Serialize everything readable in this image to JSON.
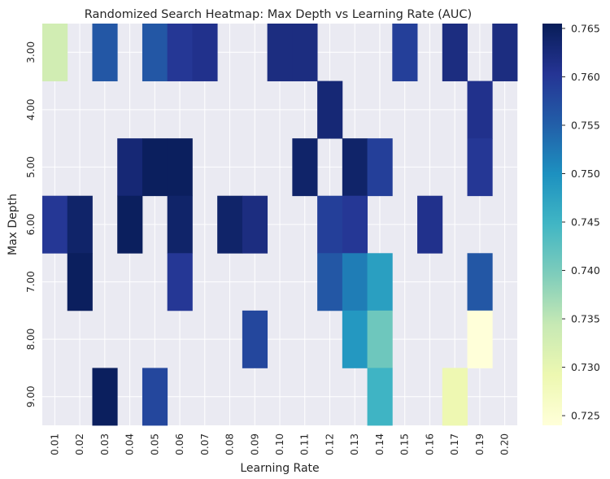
{
  "chart_data": {
    "type": "heatmap",
    "title": "Randomized Search Heatmap: Max Depth vs Learning Rate (AUC)",
    "xlabel": "Learning Rate",
    "ylabel": "Max Depth",
    "x_categories": [
      "0.01",
      "0.02",
      "0.03",
      "0.04",
      "0.05",
      "0.06",
      "0.07",
      "0.08",
      "0.09",
      "0.10",
      "0.11",
      "0.12",
      "0.13",
      "0.14",
      "0.15",
      "0.16",
      "0.17",
      "0.19",
      "0.20"
    ],
    "y_categories": [
      "3.00",
      "4.00",
      "5.00",
      "6.00",
      "7.00",
      "8.00",
      "9.00"
    ],
    "values": [
      [
        0.733,
        null,
        0.756,
        null,
        0.756,
        0.76,
        0.761,
        null,
        null,
        0.762,
        0.762,
        null,
        null,
        null,
        0.759,
        null,
        0.762,
        null,
        0.762
      ],
      [
        null,
        null,
        null,
        null,
        null,
        null,
        null,
        null,
        null,
        null,
        null,
        0.763,
        null,
        null,
        null,
        null,
        null,
        0.761,
        null
      ],
      [
        null,
        null,
        null,
        0.763,
        0.765,
        0.765,
        null,
        null,
        null,
        null,
        0.764,
        null,
        0.764,
        0.759,
        null,
        null,
        null,
        0.76,
        null
      ],
      [
        0.76,
        0.764,
        null,
        0.765,
        null,
        0.764,
        null,
        0.764,
        0.762,
        null,
        null,
        0.759,
        0.76,
        null,
        null,
        0.761,
        null,
        null,
        null
      ],
      [
        null,
        0.765,
        null,
        null,
        null,
        0.76,
        null,
        null,
        null,
        null,
        null,
        0.756,
        0.752,
        0.748,
        null,
        null,
        null,
        0.756,
        null
      ],
      [
        null,
        null,
        null,
        null,
        null,
        null,
        null,
        null,
        0.758,
        null,
        null,
        null,
        0.749,
        0.741,
        null,
        null,
        null,
        0.724,
        null
      ],
      [
        null,
        null,
        0.765,
        null,
        0.758,
        null,
        null,
        null,
        null,
        null,
        null,
        null,
        null,
        0.745,
        null,
        null,
        0.729,
        null,
        null
      ]
    ],
    "colormap": "YlGnBu",
    "colorbar": {
      "min": 0.724,
      "max": 0.7655,
      "ticks": [
        "0.725",
        "0.730",
        "0.735",
        "0.740",
        "0.745",
        "0.750",
        "0.755",
        "0.760",
        "0.765"
      ]
    },
    "colors": {
      "background": "#eaeaf2",
      "grid": "#ffffff"
    },
    "grid": true,
    "legend": "colorbar-right"
  }
}
